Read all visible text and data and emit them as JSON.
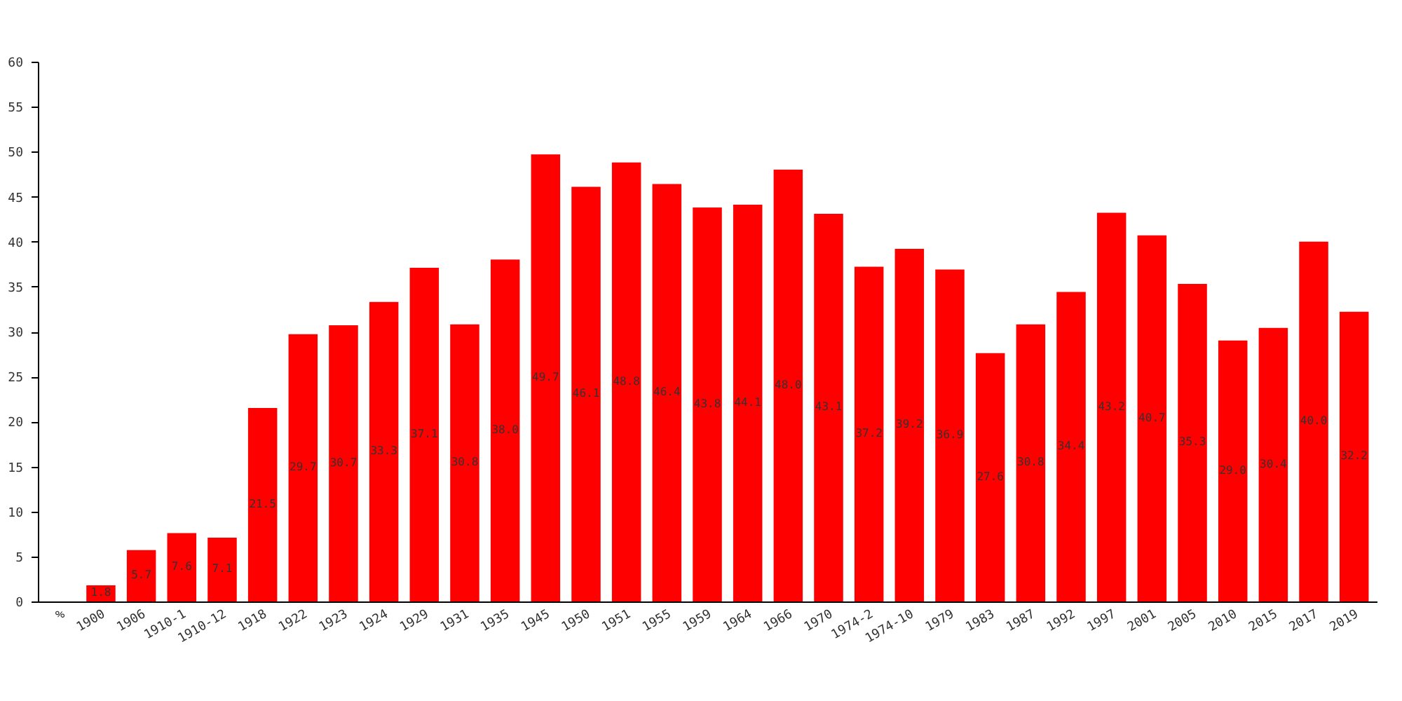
{
  "chart_data": {
    "type": "bar",
    "categories": [
      "%",
      "1900",
      "1906",
      "1910-1",
      "1910-12",
      "1918",
      "1922",
      "1923",
      "1924",
      "1929",
      "1931",
      "1935",
      "1945",
      "1950",
      "1951",
      "1955",
      "1959",
      "1964",
      "1966",
      "1970",
      "1974-2",
      "1974-10",
      "1979",
      "1983",
      "1987",
      "1992",
      "1997",
      "2001",
      "2005",
      "2010",
      "2015",
      "2017",
      "2019"
    ],
    "values": [
      null,
      1.8,
      5.7,
      7.6,
      7.1,
      21.5,
      29.7,
      30.7,
      33.3,
      37.1,
      30.8,
      38.0,
      49.7,
      46.1,
      48.8,
      46.4,
      43.8,
      44.1,
      48.0,
      43.1,
      37.2,
      39.2,
      36.9,
      27.6,
      30.8,
      34.4,
      43.2,
      40.7,
      35.3,
      29.0,
      30.4,
      40.0,
      32.2
    ],
    "value_labels": [
      null,
      "1.8",
      "5.7",
      "7.6",
      "7.1",
      "21.5",
      "29.7",
      "30.7",
      "33.3",
      "37.1",
      "30.8",
      "38.0",
      "49.7",
      "46.1",
      "48.8",
      "46.4",
      "43.8",
      "44.1",
      "48.0",
      "43.1",
      "37.2",
      "39.2",
      "36.9",
      "27.6",
      "30.8",
      "34.4",
      "43.2",
      "40.7",
      "35.3",
      "29.0",
      "30.4",
      "40.0",
      "32.2"
    ],
    "color": "#ff0000",
    "ylim": [
      0,
      60
    ],
    "yticks": [
      0,
      5,
      10,
      15,
      20,
      25,
      30,
      35,
      40,
      45,
      50,
      55,
      60
    ],
    "grid": false
  }
}
